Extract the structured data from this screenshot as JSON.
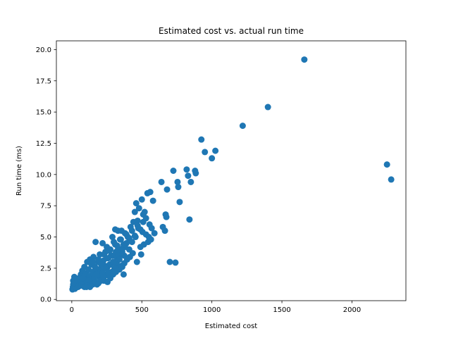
{
  "chart_data": {
    "type": "scatter",
    "title": "Estimated cost vs. actual run time",
    "xlabel": "Estimated cost",
    "ylabel": "Run time (ms)",
    "xlim": [
      -110,
      2385
    ],
    "ylim": [
      -0.1,
      20.7
    ],
    "xticks": [
      0,
      500,
      1000,
      1500,
      2000
    ],
    "xtick_labels": [
      "0",
      "500",
      "1000",
      "1500",
      "2000"
    ],
    "yticks": [
      0.0,
      2.5,
      5.0,
      7.5,
      10.0,
      12.5,
      15.0,
      17.5,
      20.0
    ],
    "ytick_labels": [
      "0.0",
      "2.5",
      "5.0",
      "7.5",
      "10.0",
      "12.5",
      "15.0",
      "17.5",
      "20.0"
    ],
    "grid": false,
    "marker_color": "#1f77b4",
    "series": [
      {
        "points": [
          [
            5,
            0.8
          ],
          [
            8,
            1.0
          ],
          [
            10,
            1.2
          ],
          [
            12,
            0.9
          ],
          [
            15,
            1.5
          ],
          [
            18,
            1.8
          ],
          [
            20,
            1.1
          ],
          [
            22,
            0.85
          ],
          [
            25,
            1.3
          ],
          [
            28,
            1.6
          ],
          [
            30,
            0.95
          ],
          [
            35,
            1.2
          ],
          [
            40,
            1.4
          ],
          [
            45,
            1.0
          ],
          [
            50,
            1.7
          ],
          [
            55,
            1.3
          ],
          [
            60,
            1.1
          ],
          [
            65,
            2.0
          ],
          [
            70,
            1.5
          ],
          [
            75,
            2.3
          ],
          [
            80,
            1.2
          ],
          [
            85,
            1.8
          ],
          [
            90,
            2.6
          ],
          [
            95,
            1.4
          ],
          [
            100,
            2.1
          ],
          [
            105,
            1.0
          ],
          [
            110,
            3.0
          ],
          [
            115,
            1.6
          ],
          [
            120,
            2.4
          ],
          [
            125,
            1.9
          ],
          [
            130,
            3.2
          ],
          [
            135,
            1.3
          ],
          [
            140,
            2.8
          ],
          [
            145,
            1.7
          ],
          [
            150,
            2.2
          ],
          [
            155,
            3.4
          ],
          [
            160,
            1.5
          ],
          [
            165,
            2.6
          ],
          [
            170,
            4.6
          ],
          [
            175,
            2.0
          ],
          [
            180,
            1.2
          ],
          [
            185,
            3.0
          ],
          [
            190,
            2.4
          ],
          [
            195,
            1.8
          ],
          [
            200,
            3.6
          ],
          [
            205,
            2.9
          ],
          [
            210,
            1.6
          ],
          [
            215,
            2.2
          ],
          [
            220,
            4.5
          ],
          [
            225,
            3.1
          ],
          [
            230,
            1.5
          ],
          [
            235,
            2.7
          ],
          [
            240,
            3.8
          ],
          [
            245,
            2.0
          ],
          [
            250,
            4.2
          ],
          [
            255,
            2.6
          ],
          [
            260,
            3.3
          ],
          [
            265,
            1.9
          ],
          [
            270,
            2.8
          ],
          [
            275,
            4.0
          ],
          [
            280,
            3.5
          ],
          [
            285,
            2.2
          ],
          [
            290,
            5.0
          ],
          [
            295,
            3.0
          ],
          [
            300,
            4.6
          ],
          [
            305,
            2.5
          ],
          [
            310,
            5.6
          ],
          [
            315,
            3.8
          ],
          [
            320,
            2.9
          ],
          [
            325,
            4.3
          ],
          [
            330,
            5.5
          ],
          [
            335,
            3.4
          ],
          [
            340,
            2.4
          ],
          [
            345,
            4.8
          ],
          [
            350,
            3.6
          ],
          [
            355,
            5.5
          ],
          [
            360,
            2.6
          ],
          [
            365,
            4.1
          ],
          [
            370,
            2.0
          ],
          [
            375,
            3.5
          ],
          [
            380,
            5.3
          ],
          [
            390,
            4.5
          ],
          [
            400,
            5.0
          ],
          [
            410,
            4.0
          ],
          [
            420,
            5.8
          ],
          [
            430,
            4.6
          ],
          [
            440,
            6.2
          ],
          [
            450,
            7.0
          ],
          [
            455,
            5.0
          ],
          [
            460,
            7.7
          ],
          [
            465,
            3.0
          ],
          [
            470,
            6.3
          ],
          [
            475,
            5.7
          ],
          [
            480,
            7.3
          ],
          [
            490,
            4.2
          ],
          [
            495,
            3.6
          ],
          [
            500,
            8.0
          ],
          [
            505,
            5.4
          ],
          [
            510,
            6.8
          ],
          [
            515,
            4.4
          ],
          [
            520,
            7.0
          ],
          [
            530,
            5.2
          ],
          [
            540,
            8.5
          ],
          [
            545,
            4.6
          ],
          [
            550,
            5.0
          ],
          [
            555,
            6.0
          ],
          [
            560,
            8.6
          ],
          [
            565,
            4.8
          ],
          [
            570,
            5.7
          ],
          [
            580,
            7.9
          ],
          [
            590,
            5.3
          ],
          [
            640,
            9.4
          ],
          [
            650,
            5.8
          ],
          [
            665,
            5.5
          ],
          [
            670,
            6.8
          ],
          [
            675,
            6.6
          ],
          [
            680,
            8.8
          ],
          [
            700,
            3.0
          ],
          [
            725,
            10.3
          ],
          [
            740,
            2.95
          ],
          [
            755,
            9.4
          ],
          [
            760,
            9.0
          ],
          [
            770,
            7.8
          ],
          [
            820,
            10.4
          ],
          [
            830,
            9.9
          ],
          [
            840,
            6.4
          ],
          [
            850,
            9.4
          ],
          [
            880,
            10.3
          ],
          [
            885,
            10.1
          ],
          [
            925,
            12.8
          ],
          [
            950,
            11.8
          ],
          [
            1000,
            11.3
          ],
          [
            1025,
            11.9
          ],
          [
            1220,
            13.9
          ],
          [
            1400,
            15.4
          ],
          [
            1660,
            19.2
          ],
          [
            2250,
            10.8
          ],
          [
            2280,
            9.6
          ],
          [
            10,
            1.5
          ],
          [
            20,
            1.3
          ],
          [
            40,
            1.6
          ],
          [
            60,
            1.4
          ],
          [
            80,
            1.7
          ],
          [
            100,
            1.3
          ],
          [
            120,
            1.5
          ],
          [
            140,
            1.2
          ],
          [
            160,
            1.8
          ],
          [
            180,
            2.0
          ],
          [
            200,
            2.4
          ],
          [
            220,
            2.1
          ],
          [
            240,
            2.5
          ],
          [
            260,
            2.2
          ],
          [
            280,
            2.8
          ],
          [
            300,
            3.0
          ],
          [
            320,
            3.4
          ],
          [
            340,
            3.2
          ],
          [
            360,
            3.8
          ],
          [
            380,
            4.2
          ],
          [
            150,
            3.0
          ],
          [
            170,
            2.5
          ],
          [
            190,
            3.2
          ],
          [
            210,
            2.8
          ],
          [
            230,
            3.6
          ],
          [
            250,
            3.3
          ],
          [
            270,
            3.9
          ],
          [
            290,
            3.5
          ],
          [
            310,
            4.4
          ],
          [
            330,
            4.0
          ],
          [
            350,
            4.8
          ],
          [
            370,
            4.4
          ],
          [
            390,
            5.2
          ],
          [
            410,
            4.9
          ],
          [
            430,
            5.5
          ],
          [
            450,
            5.1
          ],
          [
            470,
            5.9
          ],
          [
            490,
            5.6
          ],
          [
            510,
            6.2
          ],
          [
            530,
            6.5
          ],
          [
            50,
            1.1
          ],
          [
            70,
            1.2
          ],
          [
            90,
            1.0
          ],
          [
            110,
            1.1
          ],
          [
            130,
            1.0
          ],
          [
            150,
            1.2
          ],
          [
            170,
            1.4
          ],
          [
            190,
            1.3
          ],
          [
            210,
            1.5
          ],
          [
            230,
            1.8
          ],
          [
            255,
            1.4
          ],
          [
            275,
            1.7
          ],
          [
            295,
            2.0
          ],
          [
            315,
            2.2
          ],
          [
            335,
            2.5
          ],
          [
            355,
            2.7
          ],
          [
            375,
            2.9
          ],
          [
            395,
            3.2
          ],
          [
            415,
            3.4
          ],
          [
            435,
            3.7
          ]
        ]
      }
    ]
  }
}
